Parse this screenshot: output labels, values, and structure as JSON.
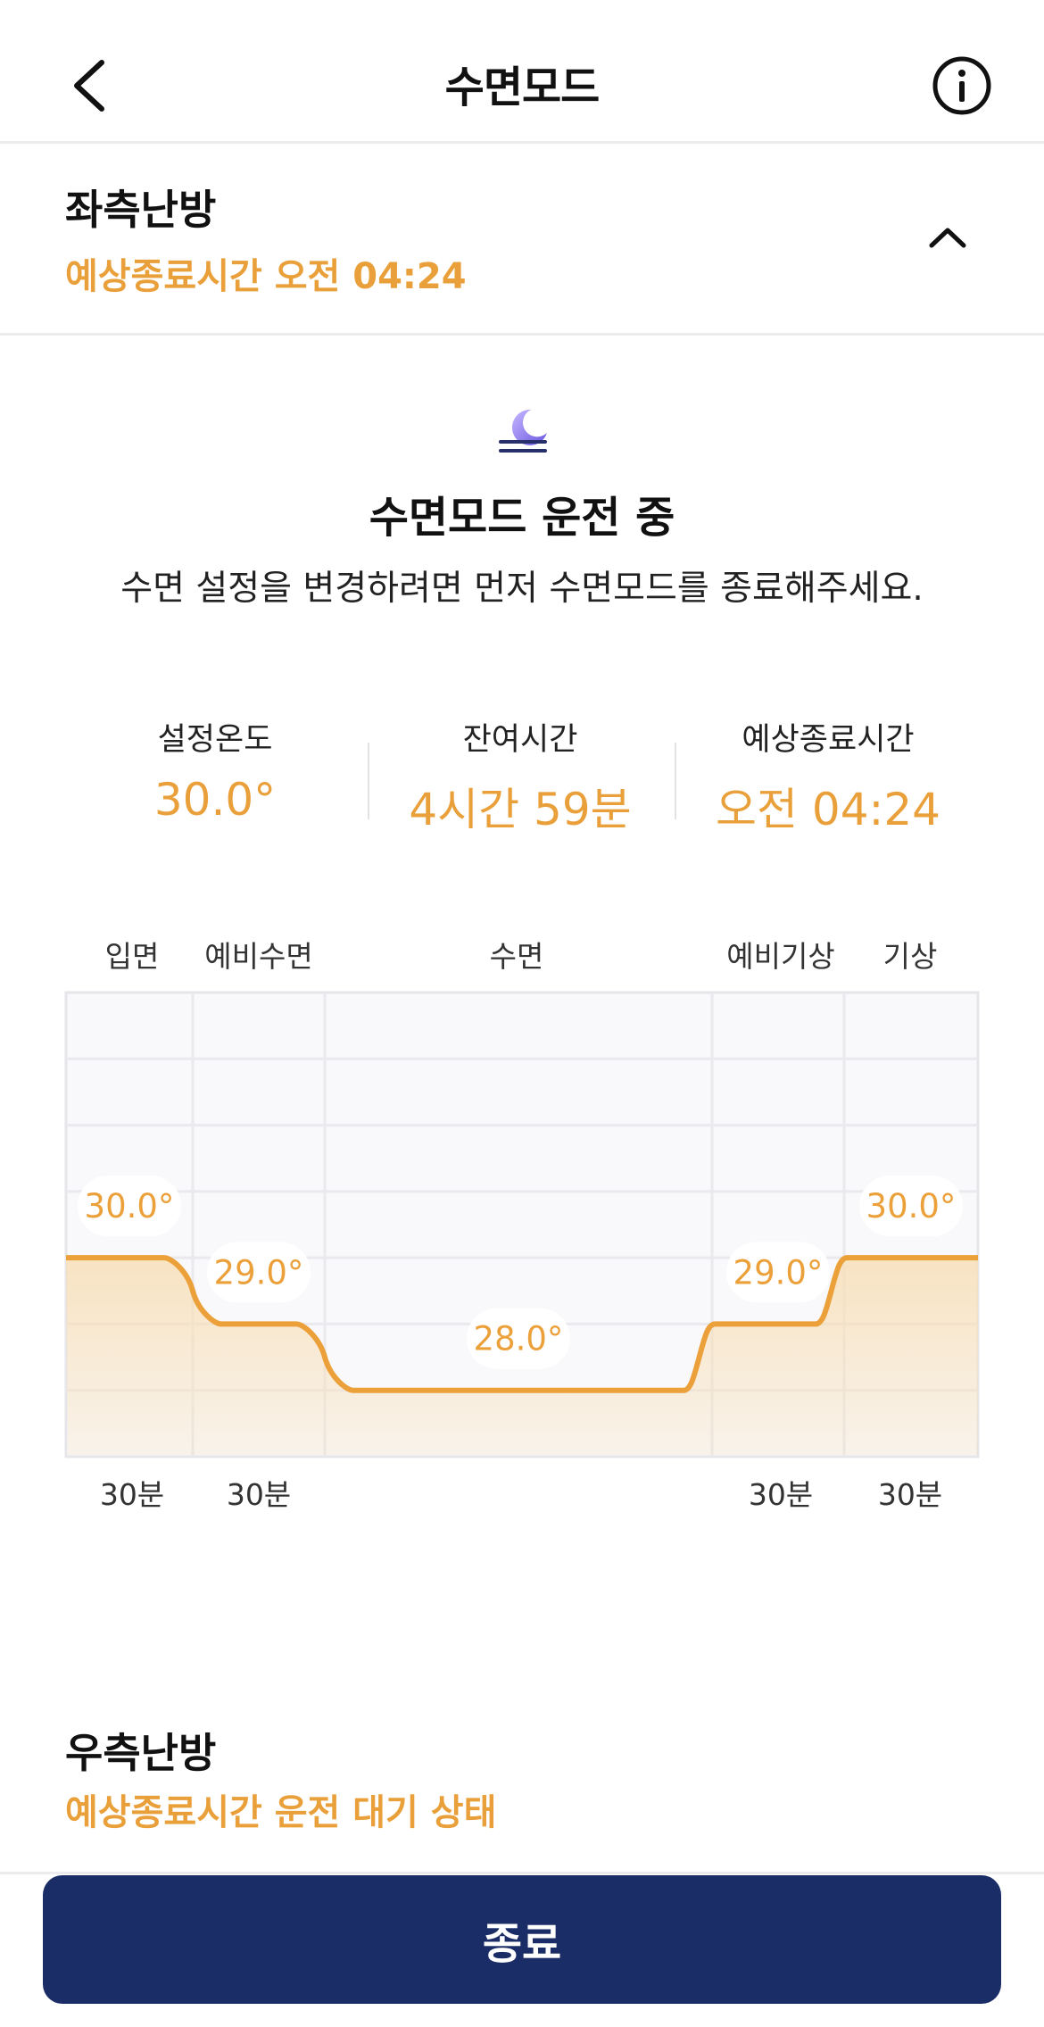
{
  "header": {
    "title": "수면모드",
    "back_icon": "chevron-left-icon",
    "info_icon": "info-circle-icon"
  },
  "left_zone": {
    "name": "좌측난방",
    "subtitle": "예상종료시간 오전 04:24",
    "toggle_icon": "chevron-up-icon"
  },
  "status": {
    "icon": "moon-icon",
    "title": "수면모드 운전 중",
    "description": "수면 설정을 변경하려면 먼저 수면모드를 종료해주세요."
  },
  "stats": [
    {
      "label": "설정온도",
      "value": "30.0°"
    },
    {
      "label": "잔여시간",
      "value": "4시간 59분"
    },
    {
      "label": "예상종료시간",
      "value": "오전 04:24"
    }
  ],
  "chart_data": {
    "type": "area",
    "phases": [
      "입면",
      "예비수면",
      "수면",
      "예비기상",
      "기상"
    ],
    "durations": [
      "30분",
      "30분",
      "",
      "30분",
      "30분"
    ],
    "values": [
      30.0,
      29.0,
      28.0,
      29.0,
      30.0
    ],
    "value_labels": [
      "30.0°",
      "29.0°",
      "28.0°",
      "29.0°",
      "30.0°"
    ],
    "grid": true,
    "line_color": "#eba03a",
    "fill_color": "#f8dfb8"
  },
  "right_zone": {
    "name": "우측난방",
    "subtitle": "예상종료시간 운전 대기 상태"
  },
  "footer": {
    "end_button_label": "종료",
    "button_color": "#1b2d66"
  },
  "colors": {
    "accent": "#eaa03a"
  }
}
